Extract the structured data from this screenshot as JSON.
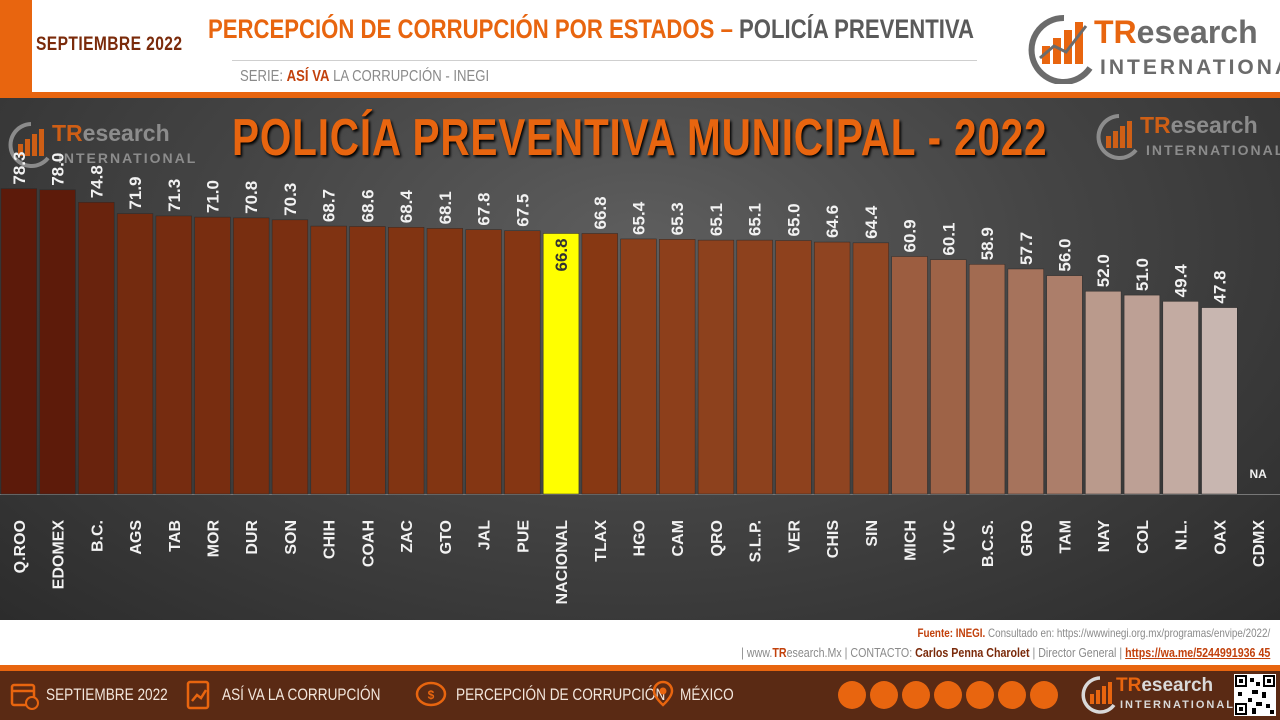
{
  "header": {
    "date": "SEPTIEMBRE 2022",
    "title_main": "PERCEPCIÓN DE CORRUPCIÓN POR ESTADOS",
    "title_sep": " – ",
    "title_sub": "POLICÍA PREVENTIVA",
    "serie_label": "SERIE:",
    "serie_bold": "ASÍ VA",
    "serie_rest": "LA CORRUPCIÓN - INEGI",
    "logo_tr": "TR",
    "logo_esearch": "esearch",
    "logo_intl": "INTERNATIONAL"
  },
  "chart_data": {
    "type": "bar",
    "title": "POLICÍA PREVENTIVA MUNICIPAL - 2022",
    "categories": [
      "Q.ROO",
      "EDOMEX",
      "B.C.",
      "AGS",
      "TAB",
      "MOR",
      "DUR",
      "SON",
      "CHIH",
      "COAH",
      "ZAC",
      "GTO",
      "JAL",
      "PUE",
      "NACIONAL",
      "TLAX",
      "HGO",
      "CAM",
      "QRO",
      "S.L.P.",
      "VER",
      "CHIS",
      "SIN",
      "MICH",
      "YUC",
      "B.C.S.",
      "GRO",
      "TAM",
      "NAY",
      "COL",
      "N.L.",
      "OAX",
      "CDMX"
    ],
    "values": [
      78.3,
      78.0,
      74.8,
      71.9,
      71.3,
      71.0,
      70.8,
      70.3,
      68.7,
      68.6,
      68.4,
      68.1,
      67.8,
      67.5,
      66.8,
      66.8,
      65.4,
      65.3,
      65.1,
      65.1,
      65.0,
      64.6,
      64.4,
      60.9,
      60.1,
      58.9,
      57.7,
      56.0,
      52.0,
      51.0,
      49.4,
      47.8,
      null
    ],
    "value_labels": [
      "78.3",
      "78.0",
      "74.8",
      "71.9",
      "71.3",
      "71.0",
      "70.8",
      "70.3",
      "68.7",
      "68.6",
      "68.4",
      "68.1",
      "67.8",
      "67.5",
      "66.8",
      "66.8",
      "65.4",
      "65.3",
      "65.1",
      "65.1",
      "65.0",
      "64.6",
      "64.4",
      "60.9",
      "60.1",
      "58.9",
      "57.7",
      "56.0",
      "52.0",
      "51.0",
      "49.4",
      "47.8",
      "NA"
    ],
    "highlight_category": "NACIONAL",
    "highlight_color": "#ffff00",
    "color_high": "#5c1a0a",
    "color_mid": "#8a3a14",
    "color_low": "#c8b6b0",
    "ylim": [
      0,
      100
    ],
    "grid": false,
    "legend": "none"
  },
  "source": {
    "label": "Fuente:",
    "name": "INEGI.",
    "text": "Consultado en: https://wwwinegi.org.mx/programas/envipe/2022/"
  },
  "contact": {
    "site_pre": "| www.",
    "site_tr": "TR",
    "site_post": "esearch.Mx",
    "label": "| CONTACTO:",
    "name": "Carlos Penna Charolet",
    "role": "| Director General |",
    "link": "https://wa.me/5244991936 45"
  },
  "footer": {
    "date": "SEPTIEMBRE 2022",
    "series": "ASÍ VA LA CORRUPCIÓN",
    "topic": "PERCEPCIÓN DE CORRUPCIÓN",
    "region": "MÉXICO"
  }
}
